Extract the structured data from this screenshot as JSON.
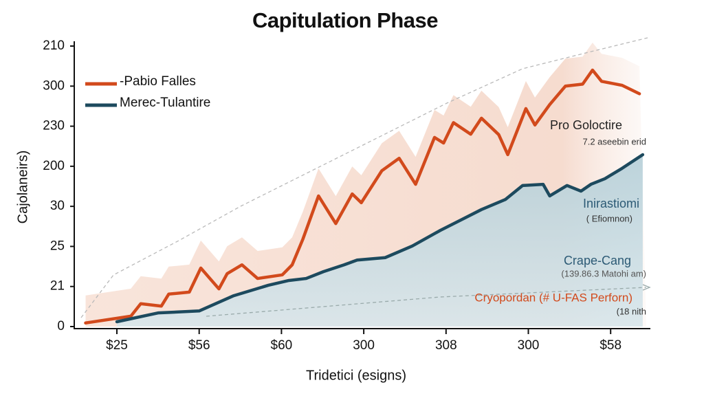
{
  "chart_data": {
    "type": "line",
    "title": "Capitulation Phase",
    "x_label": "Tridetici (esigns)",
    "y_label": "Cajolaneirs)",
    "categories": [
      "$25",
      "$56",
      "$60",
      "300",
      "308",
      "300",
      "$58"
    ],
    "xlim": [
      -0.52,
      6.47
    ],
    "ylim": [
      0,
      7
    ],
    "yticks": [
      {
        "value": 0,
        "label": "0"
      },
      {
        "value": 1,
        "label": "21"
      },
      {
        "value": 2,
        "label": "25"
      },
      {
        "value": 3,
        "label": "30"
      },
      {
        "value": 4,
        "label": "200"
      },
      {
        "value": 5,
        "label": "230"
      },
      {
        "value": 6,
        "label": "300"
      },
      {
        "value": 7,
        "label": "210"
      }
    ],
    "legend": "upper left",
    "series": [
      {
        "name": "-Pabio Falles",
        "color": "#d24a1c",
        "x": [
          -0.38,
          0.17,
          0.29,
          0.54,
          0.63,
          0.88,
          1.02,
          1.24,
          1.34,
          1.52,
          1.71,
          2.01,
          2.13,
          2.26,
          2.45,
          2.66,
          2.86,
          2.97,
          3.22,
          3.43,
          3.63,
          3.86,
          3.97,
          4.09,
          4.3,
          4.43,
          4.64,
          4.75,
          4.97,
          5.08,
          5.26,
          5.45,
          5.66,
          5.78,
          5.89,
          6.14,
          6.35
        ],
        "values": [
          0.09,
          0.26,
          0.57,
          0.51,
          0.81,
          0.86,
          1.46,
          0.94,
          1.32,
          1.54,
          1.2,
          1.29,
          1.54,
          2.18,
          3.26,
          2.57,
          3.31,
          3.09,
          3.89,
          4.2,
          3.55,
          4.72,
          4.58,
          5.09,
          4.8,
          5.2,
          4.79,
          4.29,
          5.44,
          5.03,
          5.54,
          6.0,
          6.05,
          6.4,
          6.12,
          6.02,
          5.81
        ]
      },
      {
        "name": "Merec-Tulantire",
        "color": "#1d4a5e",
        "x": [
          0,
          0.5,
          1.0,
          1.42,
          1.84,
          2.09,
          2.3,
          2.51,
          2.76,
          2.92,
          3.26,
          3.59,
          3.93,
          4.18,
          4.43,
          4.72,
          4.93,
          5.18,
          5.26,
          5.47,
          5.64,
          5.76,
          5.93,
          6.14,
          6.39
        ],
        "values": [
          0.12,
          0.34,
          0.39,
          0.77,
          1.03,
          1.15,
          1.2,
          1.37,
          1.54,
          1.66,
          1.72,
          2.01,
          2.4,
          2.66,
          2.92,
          3.17,
          3.52,
          3.55,
          3.26,
          3.52,
          3.38,
          3.55,
          3.69,
          3.95,
          4.29
        ]
      }
    ],
    "annotations": [
      {
        "text": "Pro Goloctire"
      },
      {
        "text": "7.2 aseebin erid"
      },
      {
        "text": "Inirastiomi"
      },
      {
        "text": "( Efiomnon)"
      },
      {
        "text": "Crape-Cang"
      },
      {
        "text": "(139.86.3 Matohi am)"
      },
      {
        "text": "Cryopordan (# U-FAS Perforn)"
      },
      {
        "text": "(18 nith"
      }
    ]
  }
}
